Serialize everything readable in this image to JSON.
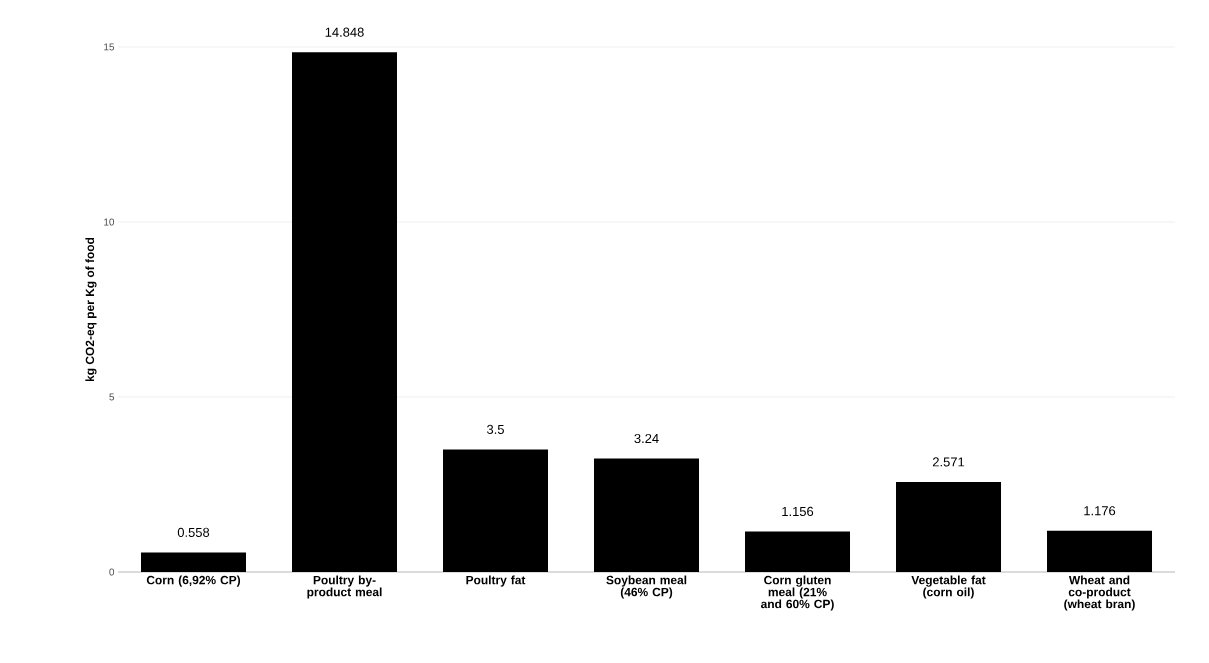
{
  "chart_data": {
    "type": "bar",
    "ylabel": "kg CO2-eq per Kg of food",
    "categories": [
      "Corn (6,92% CP)",
      "Poultry by-product meal",
      "Poultry fat",
      "Soybean meal (46% CP)",
      "Corn gluten meal (21% and 60% CP)",
      "Vegetable fat (corn oil)",
      "Wheat and co-product (wheat bran)"
    ],
    "values": [
      0.558,
      14.848,
      3.5,
      3.24,
      1.156,
      2.571,
      1.176
    ],
    "color": "#000000",
    "ylim": [
      0,
      15
    ],
    "yticks": [
      0,
      5,
      10,
      15
    ],
    "grid": "y",
    "data_labels": true
  }
}
